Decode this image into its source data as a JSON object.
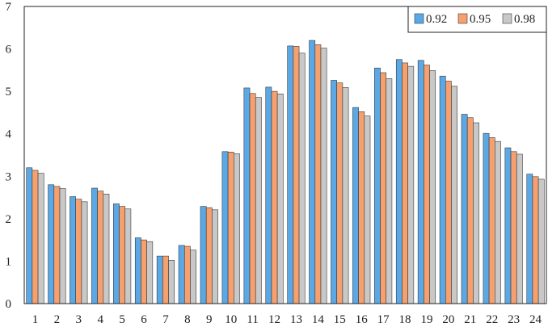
{
  "chart_data": {
    "type": "bar",
    "title": "",
    "xlabel": "",
    "ylabel": "",
    "ylim": [
      0,
      7
    ],
    "yticks": [
      "0",
      "1",
      "2",
      "3",
      "4",
      "5",
      "6",
      "7"
    ],
    "categories": [
      "1",
      "2",
      "3",
      "4",
      "5",
      "6",
      "7",
      "8",
      "9",
      "10",
      "11",
      "12",
      "13",
      "14",
      "15",
      "16",
      "17",
      "18",
      "19",
      "20",
      "21",
      "22",
      "23",
      "24"
    ],
    "grid": false,
    "legend_position": "top-right",
    "series": [
      {
        "name": "0.92",
        "color": "#5aa9e6",
        "values": [
          3.2,
          2.8,
          2.52,
          2.72,
          2.35,
          1.55,
          1.12,
          1.37,
          2.29,
          3.58,
          5.08,
          5.1,
          6.07,
          6.2,
          5.26,
          4.62,
          5.55,
          5.75,
          5.73,
          5.36,
          4.46,
          4.01,
          3.67,
          3.05
        ]
      },
      {
        "name": "0.95",
        "color": "#f5a06e",
        "values": [
          3.14,
          2.76,
          2.46,
          2.65,
          2.29,
          1.5,
          1.12,
          1.35,
          2.26,
          3.57,
          4.95,
          5.0,
          6.06,
          6.1,
          5.2,
          4.52,
          5.44,
          5.67,
          5.62,
          5.24,
          4.38,
          3.91,
          3.58,
          2.99
        ]
      },
      {
        "name": "0.98",
        "color": "#c8c8c8",
        "values": [
          3.07,
          2.71,
          2.4,
          2.58,
          2.23,
          1.46,
          1.02,
          1.26,
          2.21,
          3.53,
          4.86,
          4.94,
          5.9,
          6.02,
          5.09,
          4.42,
          5.3,
          5.59,
          5.49,
          5.12,
          4.26,
          3.82,
          3.52,
          2.93
        ]
      }
    ]
  }
}
